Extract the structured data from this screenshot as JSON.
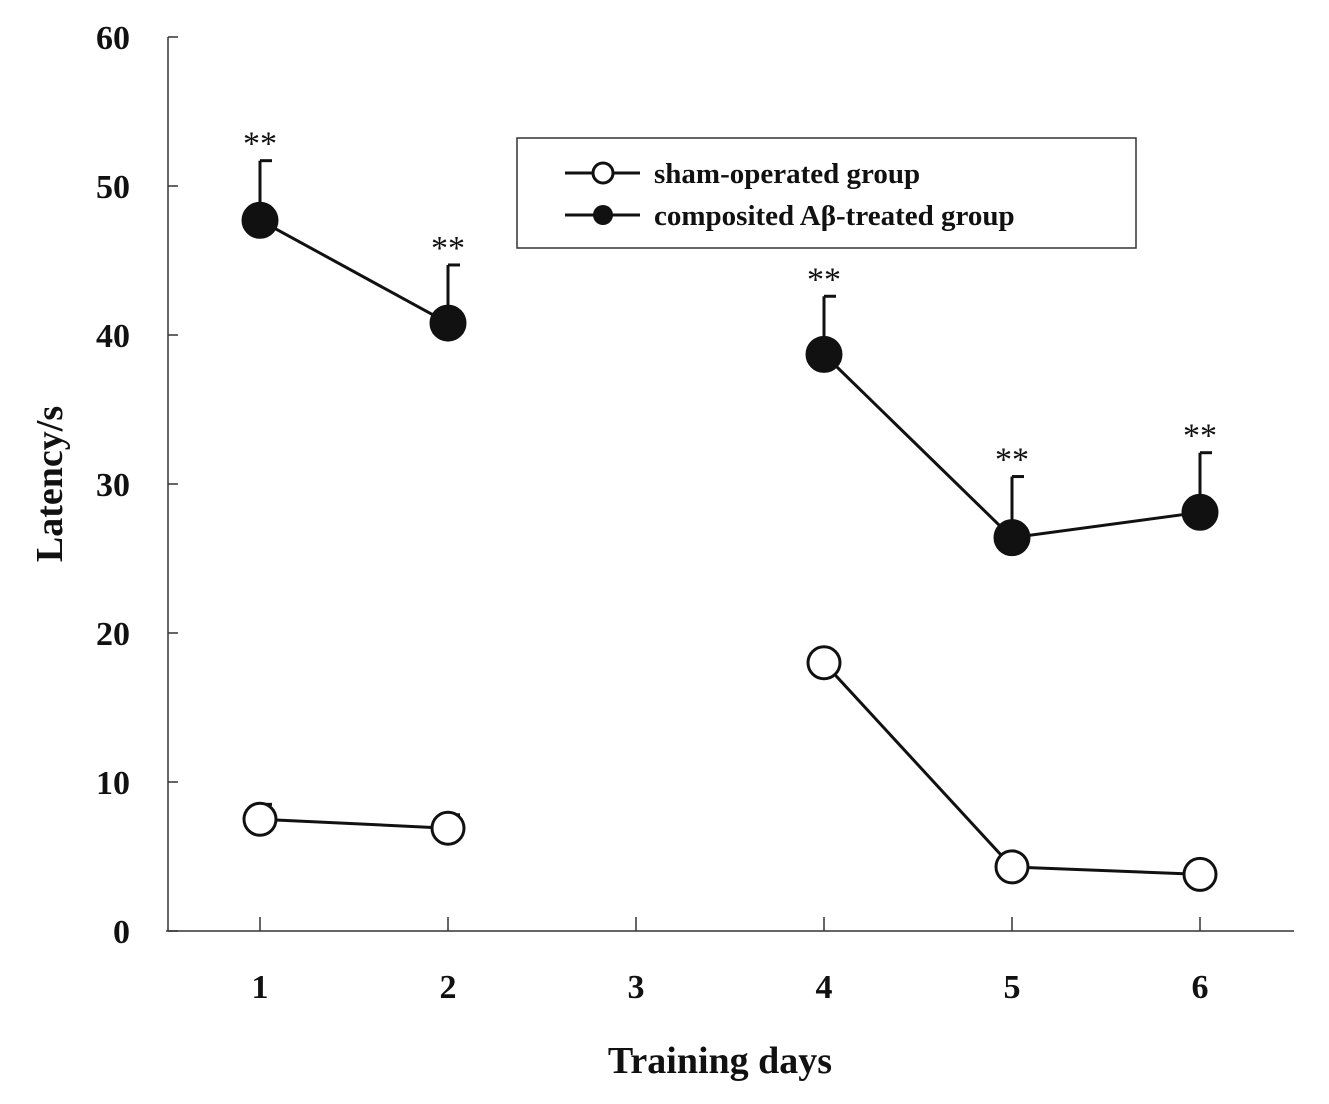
{
  "chart_data": {
    "type": "line",
    "title": "",
    "xlabel": "Training days",
    "ylabel": "Latency/s",
    "x": [
      1,
      2,
      4,
      5,
      6
    ],
    "x_ticks": [
      "1",
      "2",
      "3",
      "4",
      "5",
      "6"
    ],
    "x_tick_values": [
      1,
      2,
      3,
      4,
      5,
      6
    ],
    "y_ticks": [
      "0",
      "10",
      "20",
      "30",
      "40",
      "50",
      "60"
    ],
    "y_tick_values": [
      0,
      10,
      20,
      30,
      40,
      50,
      60
    ],
    "xlim": [
      0.5,
      6.5
    ],
    "ylim": [
      0,
      60
    ],
    "grid": false,
    "legend_position": "top-right",
    "series": [
      {
        "name": "sham-operated group",
        "marker": "open-circle",
        "segments": [
          [
            1,
            2
          ],
          [
            4,
            5,
            6
          ]
        ],
        "values": [
          7.5,
          6.9,
          18.0,
          4.3,
          3.8
        ],
        "error_upper": [
          1.0,
          0.9,
          0,
          0,
          0
        ],
        "annotations": [
          "",
          "",
          "",
          "",
          ""
        ]
      },
      {
        "name": "composited Aβ-treated group",
        "marker": "filled-circle",
        "segments": [
          [
            1,
            2
          ],
          [
            4,
            5,
            6
          ]
        ],
        "values": [
          47.7,
          40.8,
          38.7,
          26.4,
          28.1
        ],
        "error_upper": [
          4.0,
          3.9,
          3.9,
          4.1,
          4.0
        ],
        "annotations": [
          "**",
          "**",
          "**",
          "**",
          "**"
        ]
      }
    ]
  }
}
